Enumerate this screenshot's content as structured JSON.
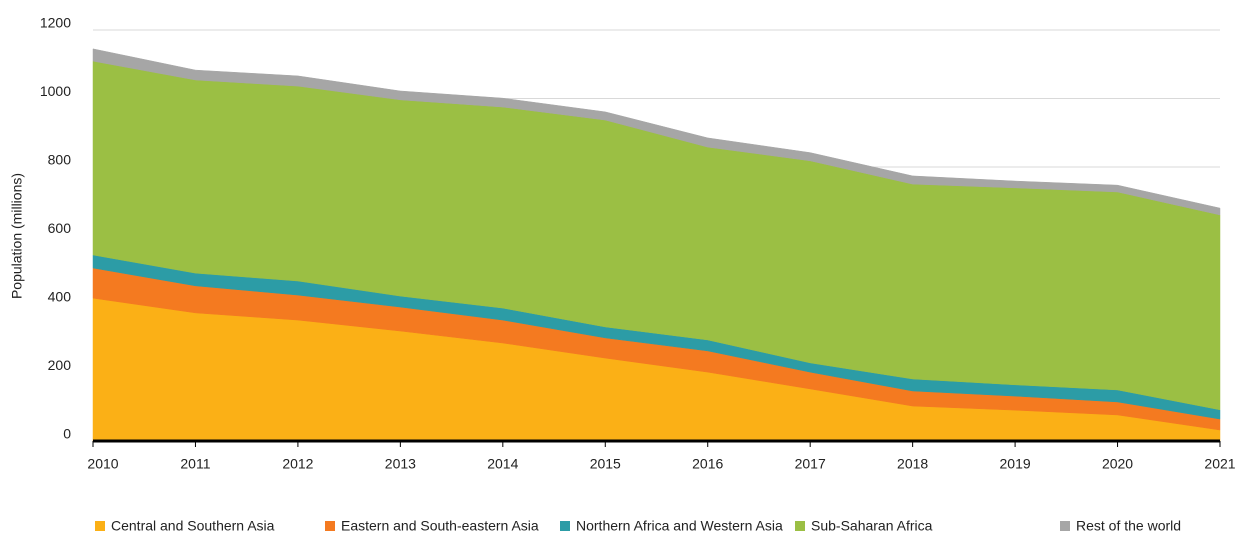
{
  "chart_data": {
    "type": "stacked_area",
    "y_label": "Population (millions)",
    "x": [
      2010,
      2011,
      2012,
      2013,
      2014,
      2015,
      2016,
      2017,
      2018,
      2019,
      2020,
      2021
    ],
    "xlim": [
      2010,
      2021
    ],
    "series": [
      {
        "name": "Central and Southern Asia",
        "color": "#fbb016",
        "values": [
          417,
          374,
          353,
          321,
          286,
          242,
          201,
          152,
          102,
          90,
          76,
          32
        ]
      },
      {
        "name": "Eastern and South-eastern Asia",
        "color": "#f47a20",
        "values": [
          88,
          79,
          73,
          70,
          67,
          59,
          62,
          49,
          44,
          41,
          38,
          32
        ]
      },
      {
        "name": "Northern Africa and Western Asia",
        "color": "#2c9ca6",
        "values": [
          38,
          37,
          41,
          32,
          35,
          32,
          32,
          27,
          35,
          33,
          35,
          27
        ]
      },
      {
        "name": "Sub-Saharan Africa",
        "color": "#9bbf44",
        "values": [
          566,
          564,
          569,
          573,
          587,
          604,
          563,
          590,
          569,
          575,
          578,
          569
        ]
      },
      {
        "name": "Rest of the world",
        "color": "#a6a6a6",
        "values": [
          36,
          29,
          30,
          26,
          26,
          24,
          27,
          24,
          24,
          20,
          20,
          20
        ]
      }
    ],
    "ylim": [
      0,
      1200
    ],
    "yticks": [
      0,
      200,
      400,
      600,
      800,
      1000,
      1200
    ],
    "grid": true,
    "legend": "bottom"
  }
}
